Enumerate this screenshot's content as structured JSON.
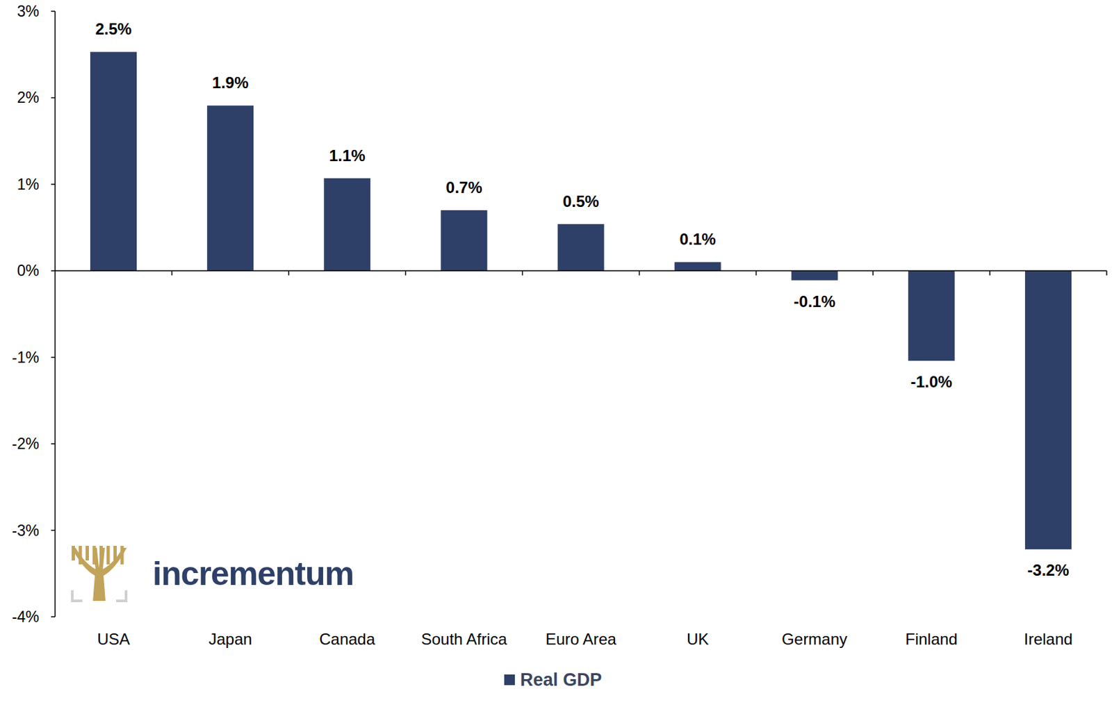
{
  "chart_data": {
    "type": "bar",
    "categories": [
      "USA",
      "Japan",
      "Canada",
      "South Africa",
      "Euro Area",
      "UK",
      "Germany",
      "Finland",
      "Ireland"
    ],
    "series": [
      {
        "name": "Real GDP",
        "color": "#2e4068",
        "values": [
          2.53,
          1.91,
          1.07,
          0.7,
          0.54,
          0.1,
          -0.11,
          -1.04,
          -3.22
        ],
        "value_labels": [
          "2.5%",
          "1.9%",
          "1.1%",
          "0.7%",
          "0.5%",
          "0.1%",
          "-0.1%",
          "-1.0%",
          "-3.2%"
        ]
      }
    ],
    "ylim": [
      -4,
      3
    ],
    "yticks": [
      {
        "value": -4,
        "label": "-4%"
      },
      {
        "value": -3,
        "label": "-3%"
      },
      {
        "value": -2,
        "label": "-2%"
      },
      {
        "value": -1,
        "label": "-1%"
      },
      {
        "value": 0,
        "label": "0%"
      },
      {
        "value": 1,
        "label": "1%"
      },
      {
        "value": 2,
        "label": "2%"
      },
      {
        "value": 3,
        "label": "3%"
      }
    ],
    "grid": false,
    "legend": "bottom",
    "data_labels": true,
    "annotations": [
      "incrementum"
    ]
  }
}
